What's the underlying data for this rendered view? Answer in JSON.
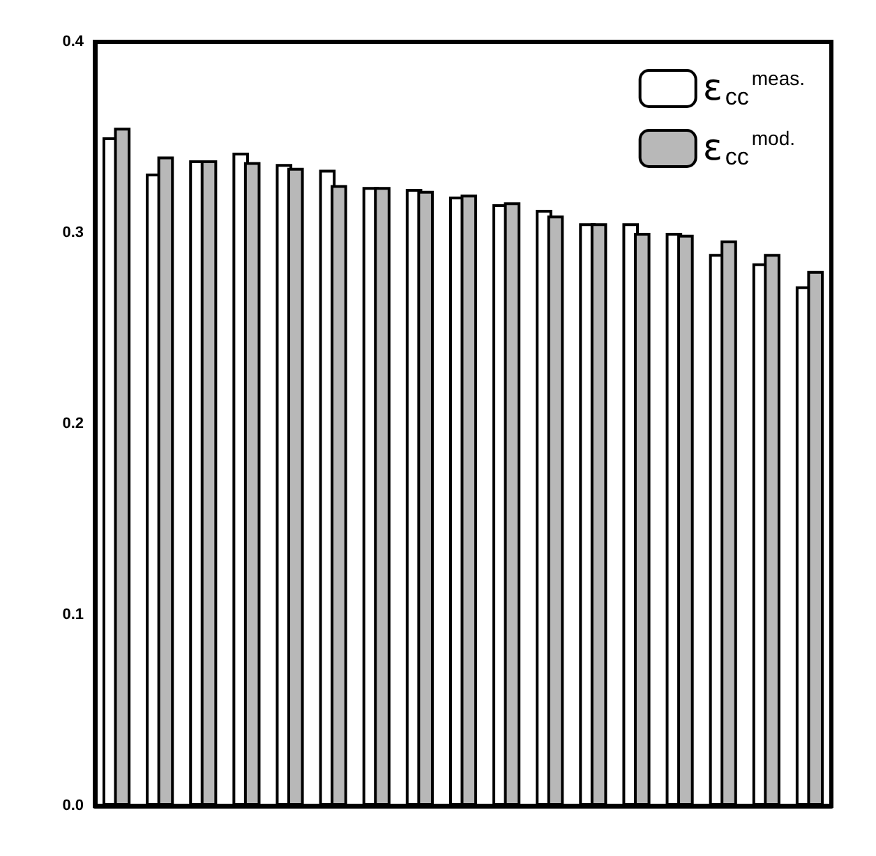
{
  "chart_data": {
    "type": "bar",
    "categories": [
      null,
      null,
      null,
      null,
      null,
      null,
      null,
      null,
      null,
      null,
      null,
      null,
      null,
      null,
      null,
      null,
      null
    ],
    "series": [
      {
        "name": "ε$_{cc}$$^{meas.}$",
        "color": "#ffffff",
        "values": [
          0.35,
          0.331,
          0.338,
          0.342,
          0.336,
          0.333,
          0.324,
          0.323,
          0.319,
          0.315,
          0.312,
          0.305,
          0.305,
          0.3,
          0.289,
          0.284,
          0.272
        ]
      },
      {
        "name": "ε$_{cc}$$^{mod.}$",
        "color": "#b8b8b8",
        "values": [
          0.355,
          0.34,
          0.338,
          0.337,
          0.334,
          0.325,
          0.324,
          0.322,
          0.32,
          0.316,
          0.309,
          0.305,
          0.3,
          0.299,
          0.296,
          0.289,
          0.28
        ]
      }
    ],
    "ylim": [
      0,
      0.4
    ],
    "yticks": [
      {
        "value": 0,
        "label": "0.0"
      },
      0.1,
      0.2,
      0.3,
      0.4
    ],
    "grid": false,
    "legend": "top right",
    "tick_labels": "y"
  }
}
